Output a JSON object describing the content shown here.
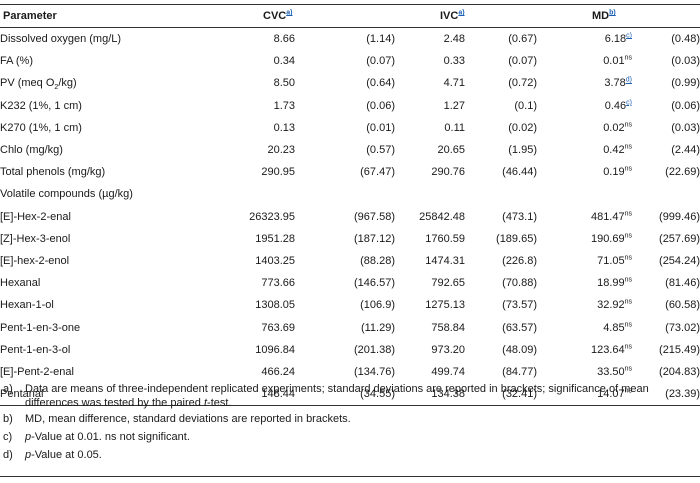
{
  "header": {
    "parameter": "Parameter",
    "cvc": "CVC",
    "cvc_sup": "a)",
    "ivc": "IVC",
    "ivc_sup": "a)",
    "md": "MD",
    "md_sup": "b)"
  },
  "rows": [
    {
      "label": "Dissolved oxygen (mg/L)",
      "cvc": "8.66",
      "cvc_sd": "(1.14)",
      "ivc": "2.48",
      "ivc_sd": "(0.67)",
      "md": "6.18",
      "md_sup": "c)",
      "md_sup_link": true,
      "md_sd": "(0.48)"
    },
    {
      "label": "FA (%)",
      "cvc": "0.34",
      "cvc_sd": "(0.07)",
      "ivc": "0.33",
      "ivc_sd": "(0.07)",
      "md": "0.01",
      "md_sup": "ns",
      "md_sup_link": false,
      "md_sd": "(0.03)"
    },
    {
      "label_pre": "PV (meq O",
      "label_sub": "2",
      "label_post": "/kg)",
      "cvc": "8.50",
      "cvc_sd": "(0.64)",
      "ivc": "4.71",
      "ivc_sd": "(0.72)",
      "md": "3.78",
      "md_sup": "d)",
      "md_sup_link": true,
      "md_sd": "(0.99)"
    },
    {
      "label": "K232 (1%, 1 cm)",
      "cvc": "1.73",
      "cvc_sd": "(0.06)",
      "ivc": "1.27",
      "ivc_sd": "(0.1)",
      "md": "0.46",
      "md_sup": "c)",
      "md_sup_link": true,
      "md_sd": "(0.06)"
    },
    {
      "label": "K270 (1%, 1 cm)",
      "cvc": "0.13",
      "cvc_sd": "(0.01)",
      "ivc": "0.11",
      "ivc_sd": "(0.02)",
      "md": "0.02",
      "md_sup": "ns",
      "md_sup_link": false,
      "md_sd": "(0.03)"
    },
    {
      "label": "Chlo (mg/kg)",
      "cvc": "20.23",
      "cvc_sd": "(0.57)",
      "ivc": "20.65",
      "ivc_sd": "(1.95)",
      "md": "0.42",
      "md_sup": "ns",
      "md_sup_link": false,
      "md_sd": "(2.44)"
    },
    {
      "label": "Total phenols (mg/kg)",
      "cvc": "290.95",
      "cvc_sd": "(67.47)",
      "ivc": "290.76",
      "ivc_sd": "(46.44)",
      "md": "0.19",
      "md_sup": "ns",
      "md_sup_link": false,
      "md_sd": "(22.69)"
    },
    {
      "label": "Volatile compounds (µg/kg)",
      "section": true
    },
    {
      "label": "[E]-Hex-2-enal",
      "cvc": "26323.95",
      "cvc_sd": "(967.58)",
      "ivc": "25842.48",
      "ivc_sd": "(473.1)",
      "md": "481.47",
      "md_sup": "ns",
      "md_sup_link": false,
      "md_sd": "(999.46)"
    },
    {
      "label": "[Z]-Hex-3-enol",
      "cvc": "1951.28",
      "cvc_sd": "(187.12)",
      "ivc": "1760.59",
      "ivc_sd": "(189.65)",
      "md": "190.69",
      "md_sup": "ns",
      "md_sup_link": false,
      "md_sd": "(257.69)"
    },
    {
      "label": "[E]-hex-2-enol",
      "cvc": "1403.25",
      "cvc_sd": "(88.28)",
      "ivc": "1474.31",
      "ivc_sd": "(226.8)",
      "md": "71.05",
      "md_sup": "ns",
      "md_sup_link": false,
      "md_sd": "(254.24)"
    },
    {
      "label": "Hexanal",
      "cvc": "773.66",
      "cvc_sd": "(146.57)",
      "ivc": "792.65",
      "ivc_sd": "(70.88)",
      "md": "18.99",
      "md_sup": "ns",
      "md_sup_link": false,
      "md_sd": "(81.46)"
    },
    {
      "label": "Hexan-1-ol",
      "cvc": "1308.05",
      "cvc_sd": "(106.9)",
      "ivc": "1275.13",
      "ivc_sd": "(73.57)",
      "md": "32.92",
      "md_sup": "ns",
      "md_sup_link": false,
      "md_sd": "(60.58)"
    },
    {
      "label": "Pent-1-en-3-one",
      "cvc": "763.69",
      "cvc_sd": "(11.29)",
      "ivc": "758.84",
      "ivc_sd": "(63.57)",
      "md": "4.85",
      "md_sup": "ns",
      "md_sup_link": false,
      "md_sd": "(73.02)"
    },
    {
      "label": "Pent-1-en-3-ol",
      "cvc": "1096.84",
      "cvc_sd": "(201.38)",
      "ivc": "973.20",
      "ivc_sd": "(48.09)",
      "md": "123.64",
      "md_sup": "ns",
      "md_sup_link": false,
      "md_sd": "(215.49)"
    },
    {
      "label": "[E]-Pent-2-enal",
      "cvc": "466.24",
      "cvc_sd": "(134.76)",
      "ivc": "499.74",
      "ivc_sd": "(84.77)",
      "md": "33.50",
      "md_sup": "ns",
      "md_sup_link": false,
      "md_sd": "(204.83)"
    },
    {
      "label": "Pentanal",
      "cvc": "148.44",
      "cvc_sd": "(34.55)",
      "ivc": "134.38",
      "ivc_sd": "(32.41)",
      "md": "14.07",
      "md_sup": "ns",
      "md_sup_link": false,
      "md_sd": "(23.39)"
    }
  ],
  "notes": {
    "a_marker": "a)",
    "a_text_1": "Data are means of three-independent replicated experiments; standard deviations are reported in brackets; significance of mean differences was tested by the paired ",
    "a_text_italic": "t",
    "a_text_2": "-test.",
    "b_marker": "b)",
    "b_text": "MD, mean difference, standard deviations are reported in brackets.",
    "c_marker": "c)",
    "c_text_italic": "p",
    "c_text": "-Value at 0.01. ns not significant.",
    "d_marker": "d)",
    "d_text_italic": "p",
    "d_text": "-Value at 0.05."
  }
}
